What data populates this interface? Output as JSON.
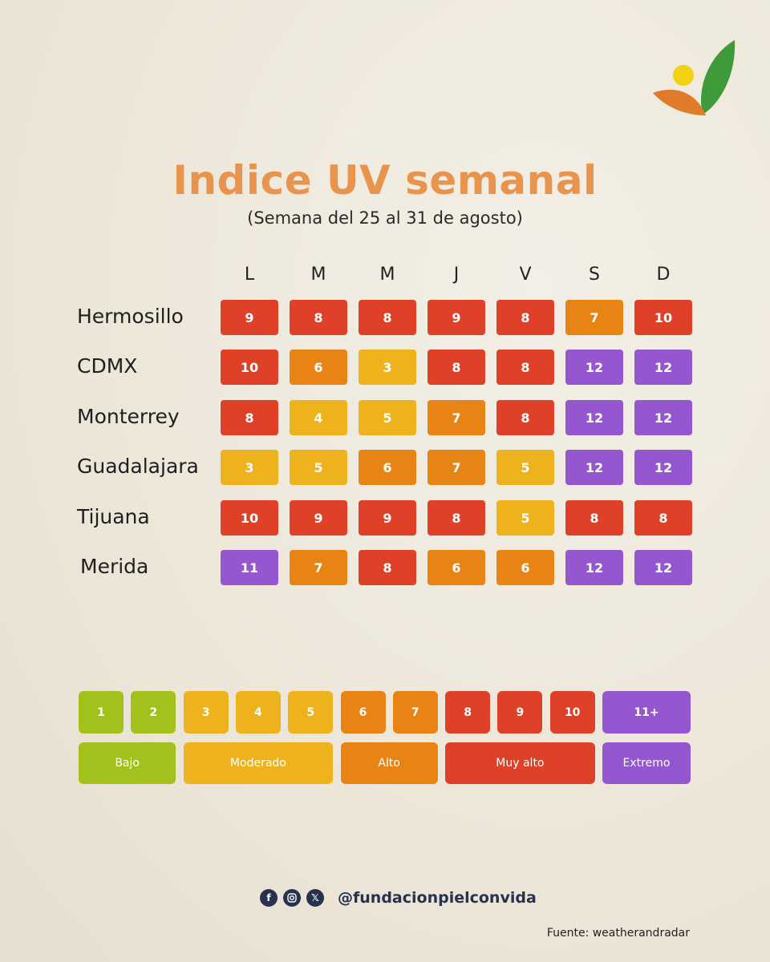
{
  "header": {
    "title": "Indice UV semanal",
    "subtitle": "(Semana del 25 al 31 de agosto)"
  },
  "days": [
    "L",
    "M",
    "M",
    "J",
    "V",
    "S",
    "D"
  ],
  "rows": [
    {
      "city": "Hermosillo",
      "values": [
        9,
        8,
        8,
        9,
        8,
        7,
        10
      ]
    },
    {
      "city": "CDMX",
      "values": [
        10,
        6,
        3,
        8,
        8,
        12,
        12
      ]
    },
    {
      "city": "Monterrey",
      "values": [
        8,
        4,
        5,
        7,
        8,
        12,
        12
      ]
    },
    {
      "city": "Guadalajara",
      "values": [
        3,
        5,
        6,
        7,
        5,
        12,
        12
      ]
    },
    {
      "city": "Tijuana",
      "values": [
        10,
        9,
        9,
        8,
        5,
        8,
        8
      ]
    },
    {
      "city": "Merida",
      "values": [
        11,
        7,
        8,
        6,
        6,
        12,
        12
      ]
    }
  ],
  "legend": {
    "numbers": [
      "1",
      "2",
      "3",
      "4",
      "5",
      "6",
      "7",
      "8",
      "9",
      "10",
      "11+"
    ],
    "levels": [
      "Bajo",
      "Moderado",
      "Alto",
      "Muy alto",
      "Extremo"
    ]
  },
  "colors": {
    "bajo": "#a3c11c",
    "moderado": "#eeb31c",
    "alto": "#e88414",
    "muy_alto": "#de4128",
    "extremo": "#9457cf",
    "title": "#e8944d"
  },
  "footer": {
    "icons": [
      "facebook-icon",
      "instagram-icon",
      "x-icon"
    ],
    "handle": "@fundacionpielconvida",
    "source": "Fuente: weatherandradar"
  }
}
